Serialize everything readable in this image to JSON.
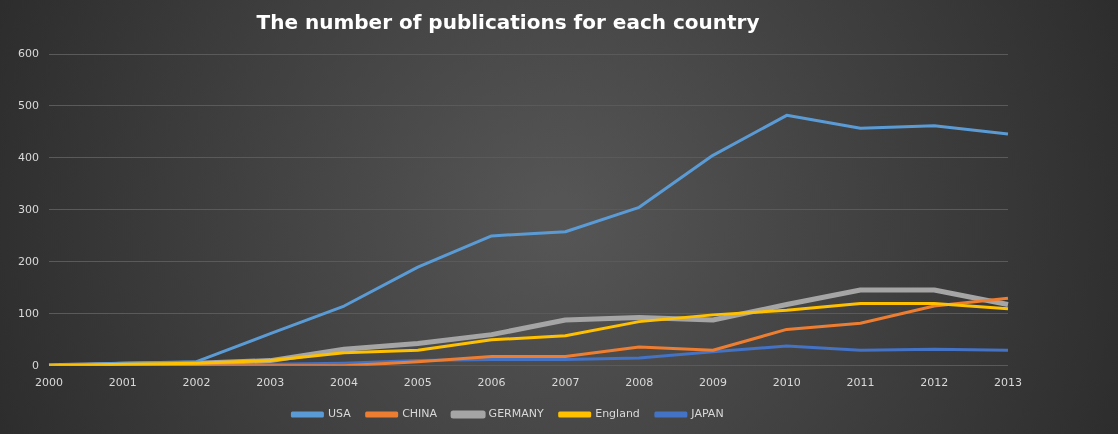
{
  "chart_data": {
    "type": "line",
    "title": "The number of publications for each country",
    "categories": [
      "2000",
      "2001",
      "2002",
      "2003",
      "2004",
      "2005",
      "2006",
      "2007",
      "2008",
      "2009",
      "2010",
      "2011",
      "2012",
      "2013"
    ],
    "series": [
      {
        "name": "USA",
        "color": "#5b9bd5",
        "values": [
          0,
          5,
          8,
          62,
          115,
          190,
          250,
          258,
          305,
          405,
          482,
          457,
          462,
          446
        ]
      },
      {
        "name": "CHINA",
        "color": "#ed7d31",
        "values": [
          0,
          0,
          0,
          0,
          0,
          8,
          18,
          18,
          36,
          30,
          70,
          82,
          115,
          130
        ]
      },
      {
        "name": "GERMANY",
        "color": "#a5a5a5",
        "values": [
          0,
          3,
          5,
          10,
          32,
          43,
          60,
          88,
          93,
          88,
          118,
          146,
          146,
          118
        ]
      },
      {
        "name": "England",
        "color": "#ffc000",
        "values": [
          0,
          3,
          5,
          10,
          25,
          30,
          50,
          58,
          85,
          98,
          107,
          120,
          120,
          110
        ]
      },
      {
        "name": "JAPAN",
        "color": "#4472c4",
        "values": [
          0,
          2,
          3,
          3,
          5,
          10,
          12,
          12,
          15,
          27,
          38,
          30,
          32,
          30
        ]
      }
    ],
    "ylim": [
      0,
      600
    ],
    "yticks": [
      0,
      100,
      200,
      300,
      400,
      500,
      600
    ],
    "grid": "y",
    "legend": "bottom",
    "marker": "none",
    "line_style": "solid"
  }
}
